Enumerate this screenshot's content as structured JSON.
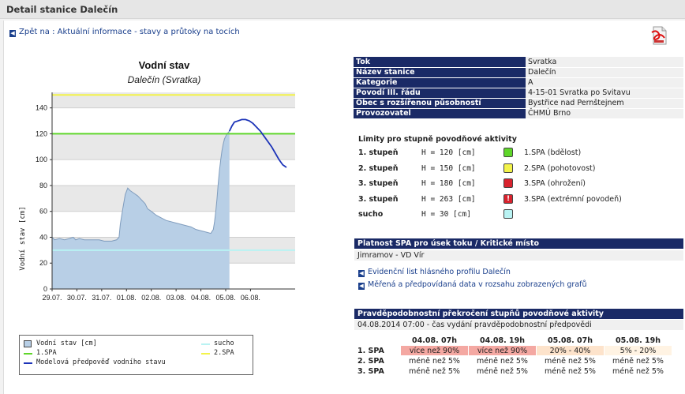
{
  "header": {
    "title": "Detail stanice Dalečín"
  },
  "nav": {
    "back_link": "Zpět na : Aktuální informace - stavy a průtoky na tocích"
  },
  "icons": {
    "back": "arrow-left-icon",
    "pdf": "pdf-icon"
  },
  "colors": {
    "header_blue": "#1a2a66",
    "link_blue": "#1a3f8c",
    "spa1": "#5fd62a",
    "spa2": "#f3f34a",
    "spa3": "#d9232e",
    "sucho": "#b9f3f3",
    "prob_high": "#f4a8a2",
    "prob_mid": "#fde3cb",
    "prob_low": "#fff3e3"
  },
  "chart_data": {
    "type": "area",
    "title": "Vodní stav",
    "subtitle": "Dalečín (Svratka)",
    "ylabel": "Vodní stav [cm]",
    "ylim": [
      0,
      150
    ],
    "yticks": [
      "0",
      "20",
      "40",
      "60",
      "80",
      "100",
      "120",
      "140"
    ],
    "xticks": [
      "29.07.",
      "30.07.",
      "31.07.",
      "01.08.",
      "02.08.",
      "03.08.",
      "04.08.",
      "05.08.",
      "06.08."
    ],
    "grid": true,
    "series": [
      {
        "name": "Vodní stav [cm]",
        "type": "area",
        "color": "#b8cfe6",
        "x": [
          29.0,
          29.1,
          29.3,
          29.5,
          29.7,
          29.85,
          29.95,
          30.1,
          30.3,
          30.6,
          30.9,
          31.1,
          31.4,
          31.6,
          31.7,
          31.75,
          31.85,
          31.95,
          32.05,
          32.15,
          32.3,
          32.45,
          32.55,
          32.65,
          32.75,
          32.85,
          33.0,
          33.2,
          33.4,
          33.6,
          33.8,
          34.0,
          34.2,
          34.4,
          34.6,
          34.8,
          35.0,
          35.2,
          35.4,
          35.5,
          35.55,
          35.6,
          35.65,
          35.7,
          35.75,
          35.8,
          35.85,
          35.9,
          35.95,
          36.0,
          36.05,
          36.1,
          36.15
        ],
        "y": [
          40,
          38,
          39,
          38,
          39,
          40,
          38,
          39,
          38,
          38,
          38,
          37,
          37,
          38,
          40,
          50,
          62,
          73,
          78,
          76,
          74,
          72,
          70,
          68,
          66,
          62,
          60,
          57,
          55,
          53,
          52,
          51,
          50,
          49,
          48,
          46,
          45,
          44,
          43,
          46,
          52,
          60,
          70,
          82,
          92,
          100,
          107,
          112,
          116,
          118,
          120,
          121,
          122
        ]
      },
      {
        "name": "Modelová předpověď vodního stavu",
        "type": "line",
        "color": "#1c33b8",
        "x": [
          36.15,
          36.25,
          36.35,
          36.5,
          36.65,
          36.8,
          36.95,
          37.1,
          37.25,
          37.4,
          37.55,
          37.7,
          37.85,
          38.0,
          38.15,
          38.3,
          38.45
        ],
        "y": [
          122,
          126,
          129,
          130,
          131,
          131,
          130,
          128,
          125,
          122,
          118,
          114,
          110,
          105,
          100,
          96,
          94
        ]
      }
    ],
    "thresholds": [
      {
        "name": "1.SPA",
        "value": 120,
        "color": "#5fd62a"
      },
      {
        "name": "2.SPA",
        "value": 150,
        "color": "#f3f34a"
      },
      {
        "name": "sucho",
        "value": 30,
        "color": "#b9f3f3"
      }
    ]
  },
  "legend": {
    "items": [
      {
        "label": "Vodní stav [cm]"
      },
      {
        "label": "1.SPA"
      },
      {
        "label": "Modelová předpověď vodního stavu"
      },
      {
        "label": "sucho"
      },
      {
        "label": "2.SPA"
      }
    ]
  },
  "station_info": [
    {
      "key": "Tok",
      "value": "Svratka"
    },
    {
      "key": "Název stanice",
      "value": "Dalečín"
    },
    {
      "key": "Kategorie",
      "value": "A"
    },
    {
      "key": "Povodí III. řádu",
      "value": "4-15-01 Svratka po Svitavu"
    },
    {
      "key": "Obec s rozšířenou působností",
      "value": "Bystřice nad Pernštejnem"
    },
    {
      "key": "Provozovatel",
      "value": "ČHMÚ Brno"
    }
  ],
  "limits": {
    "title": "Limity pro stupně povodňové aktivity",
    "rows": [
      {
        "stage": "1. stupeň",
        "h": "H = 120 [cm]",
        "desc": "1.SPA (bdělost)"
      },
      {
        "stage": "2. stupeň",
        "h": "H = 150 [cm]",
        "desc": "2.SPA (pohotovost)"
      },
      {
        "stage": "3. stupeň",
        "h": "H = 180 [cm]",
        "desc": "3.SPA (ohrožení)"
      },
      {
        "stage": "3. stupeň",
        "h": "H = 263 [cm]",
        "desc": "3.SPA (extrémní povodeň)"
      },
      {
        "stage": "sucho",
        "h": "H = 30 [cm]",
        "desc": ""
      }
    ]
  },
  "validity": {
    "title": "Platnost SPA pro úsek toku / Kritické místo",
    "value": "Jimramov - VD Vír"
  },
  "links": {
    "profile": "Evidenční list hlásného profilu Dalečín",
    "data": "Měřená a předpovídaná data v rozsahu zobrazených grafů"
  },
  "probability": {
    "title": "Pravděpodobnostní překročení stupňů povodňové aktivity",
    "issued": "04.08.2014 07:00 - čas vydání pravděpodobnostní předpovědi",
    "columns": [
      "04.08. 07h",
      "04.08. 19h",
      "05.08. 07h",
      "05.08. 19h"
    ],
    "rows": [
      {
        "label": "1. SPA",
        "cells": [
          "více než 90%",
          "více než 90%",
          "20% - 40%",
          "5% - 20%"
        ]
      },
      {
        "label": "2. SPA",
        "cells": [
          "méně než 5%",
          "méně než 5%",
          "méně než 5%",
          "méně než 5%"
        ]
      },
      {
        "label": "3. SPA",
        "cells": [
          "méně než 5%",
          "méně než 5%",
          "méně než 5%",
          "méně než 5%"
        ]
      }
    ]
  }
}
